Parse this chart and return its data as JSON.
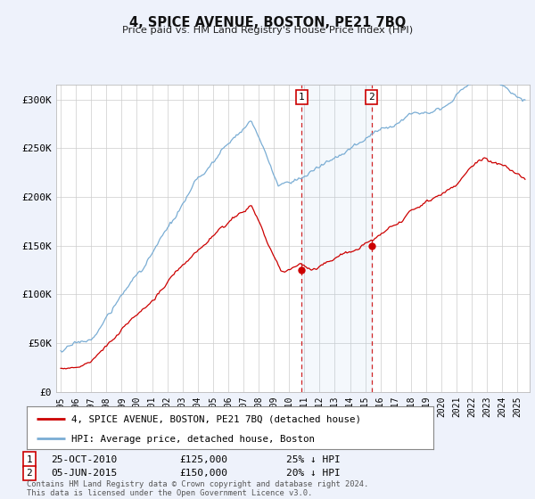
{
  "title": "4, SPICE AVENUE, BOSTON, PE21 7BQ",
  "subtitle": "Price paid vs. HM Land Registry's House Price Index (HPI)",
  "hpi_color": "#7aadd4",
  "price_color": "#cc0000",
  "background_color": "#eef2fb",
  "plot_bg": "#ffffff",
  "ylabel_ticks": [
    "£0",
    "£50K",
    "£100K",
    "£150K",
    "£200K",
    "£250K",
    "£300K"
  ],
  "ytick_values": [
    0,
    50000,
    100000,
    150000,
    200000,
    250000,
    300000
  ],
  "ylim": [
    0,
    315000
  ],
  "xlim_start": 1994.7,
  "xlim_end": 2025.8,
  "transaction1": {
    "date_num": 2010.82,
    "price": 125000,
    "label": "1",
    "date_str": "25-OCT-2010",
    "pct": "25% ↓ HPI"
  },
  "transaction2": {
    "date_num": 2015.43,
    "price": 150000,
    "label": "2",
    "date_str": "05-JUN-2015",
    "pct": "20% ↓ HPI"
  },
  "legend_entry1": "4, SPICE AVENUE, BOSTON, PE21 7BQ (detached house)",
  "legend_entry2": "HPI: Average price, detached house, Boston",
  "footnote": "Contains HM Land Registry data © Crown copyright and database right 2024.\nThis data is licensed under the Open Government Licence v3.0."
}
